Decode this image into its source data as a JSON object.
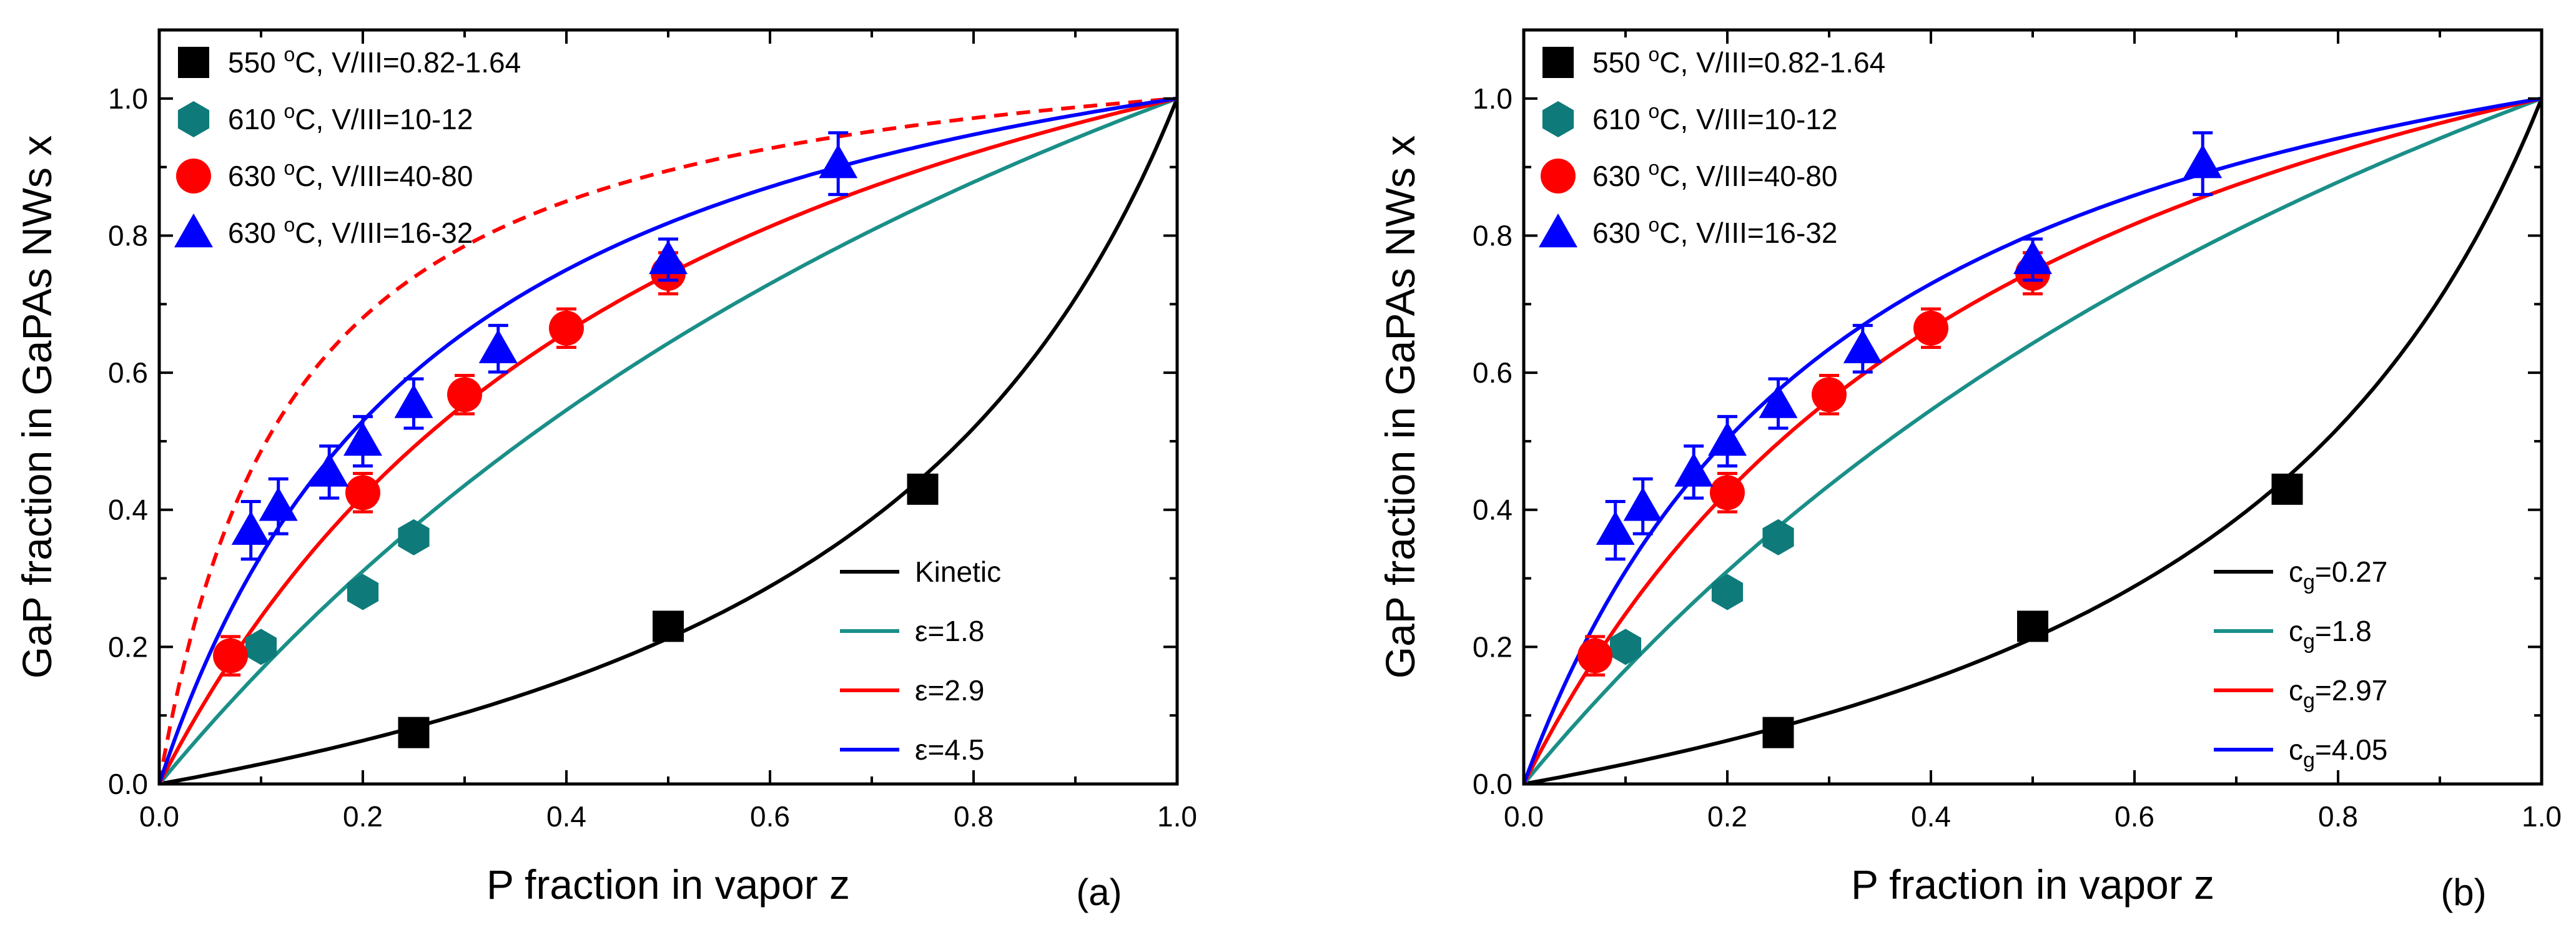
{
  "chart_data": [
    {
      "type": "scatter",
      "panel_label": "(a)",
      "xlabel": "P fraction in vapor z",
      "ylabel": "GaP fraction in GaPAs NWs x",
      "xlim": [
        0,
        1
      ],
      "ylim": [
        0,
        1.1
      ],
      "xticks": [
        "0.0",
        "0.2",
        "0.4",
        "0.6",
        "0.8",
        "1.0"
      ],
      "yticks": [
        "0.0",
        "0.2",
        "0.4",
        "0.6",
        "0.8",
        "1.0"
      ],
      "scatter_series": [
        {
          "name": "550 °C, V/III=0.82-1.64",
          "label_temp": "550",
          "label_rest": "C, V/III=0.82-1.64",
          "marker": "square",
          "color": "#000000",
          "x": [
            0.25,
            0.5,
            0.75
          ],
          "y": [
            0.075,
            0.23,
            0.43
          ]
        },
        {
          "name": "610 °C, V/III=10-12",
          "label_temp": "610",
          "label_rest": "C, V/III=10-12",
          "marker": "hexagon",
          "color": "#0e7a7a",
          "x": [
            0.1,
            0.2,
            0.25
          ],
          "y": [
            0.2,
            0.28,
            0.36
          ]
        },
        {
          "name": "630 °C, V/III=40-80",
          "label_temp": "630",
          "label_rest": "C, V/III=40-80",
          "marker": "circle",
          "color": "#ff0000",
          "x": [
            0.07,
            0.2,
            0.3,
            0.4,
            0.5
          ],
          "y": [
            0.187,
            0.425,
            0.568,
            0.665,
            0.745
          ],
          "err": [
            0.028,
            0.028,
            0.028,
            0.028,
            0.03
          ]
        },
        {
          "name": "630 °C, V/III=16-32",
          "label_temp": "630",
          "label_rest": "C, V/III=16-32",
          "marker": "triangle",
          "color": "#0000ff",
          "x": [
            0.09,
            0.117,
            0.167,
            0.2,
            0.25,
            0.333,
            0.5,
            0.667
          ],
          "y": [
            0.37,
            0.405,
            0.455,
            0.5,
            0.555,
            0.635,
            0.765,
            0.905
          ],
          "err": [
            0.042,
            0.04,
            0.038,
            0.036,
            0.036,
            0.034,
            0.03,
            0.045
          ]
        }
      ],
      "model_curves": [
        {
          "name": "Kinetic",
          "label_main": "Kinetic",
          "label_sym": "",
          "label_sub": "",
          "label_val": "",
          "param": 0.27,
          "color": "#000000",
          "style": "solid"
        },
        {
          "name": "ε=1.8",
          "label_main": "",
          "label_sym": "ε",
          "label_sub": "",
          "label_val": "=1.8",
          "param": 1.8,
          "color": "#1a8f88",
          "style": "solid"
        },
        {
          "name": "ε=2.9",
          "label_main": "",
          "label_sym": "ε",
          "label_sub": "",
          "label_val": "=2.9",
          "param": 2.9,
          "color": "#ff0000",
          "style": "solid"
        },
        {
          "name": "ε=4.5",
          "label_main": "",
          "label_sym": "ε",
          "label_sub": "",
          "label_val": "=4.5",
          "param": 4.5,
          "color": "#0000ff",
          "style": "solid"
        }
      ],
      "extra_curves": [
        {
          "name": "red dashed",
          "param": 8.5,
          "color": "#ff0000",
          "style": "dashed",
          "in_legend": false
        }
      ]
    },
    {
      "type": "scatter",
      "panel_label": "(b)",
      "xlabel": "P fraction in vapor z",
      "ylabel": "GaP fraction in GaPAs NWs x",
      "xlim": [
        0,
        1
      ],
      "ylim": [
        0,
        1.1
      ],
      "xticks": [
        "0.0",
        "0.2",
        "0.4",
        "0.6",
        "0.8",
        "1.0"
      ],
      "yticks": [
        "0.0",
        "0.2",
        "0.4",
        "0.6",
        "0.8",
        "1.0"
      ],
      "scatter_series": [
        {
          "name": "550 °C, V/III=0.82-1.64",
          "label_temp": "550",
          "label_rest": "C, V/III=0.82-1.64",
          "marker": "square",
          "color": "#000000",
          "x": [
            0.25,
            0.5,
            0.75
          ],
          "y": [
            0.075,
            0.23,
            0.43
          ]
        },
        {
          "name": "610 °C, V/III=10-12",
          "label_temp": "610",
          "label_rest": "C, V/III=10-12",
          "marker": "hexagon",
          "color": "#0e7a7a",
          "x": [
            0.1,
            0.2,
            0.25
          ],
          "y": [
            0.2,
            0.28,
            0.36
          ]
        },
        {
          "name": "630 °C, V/III=40-80",
          "label_temp": "630",
          "label_rest": "C, V/III=40-80",
          "marker": "circle",
          "color": "#ff0000",
          "x": [
            0.07,
            0.2,
            0.3,
            0.4,
            0.5
          ],
          "y": [
            0.187,
            0.425,
            0.568,
            0.665,
            0.745
          ],
          "err": [
            0.028,
            0.028,
            0.028,
            0.028,
            0.03
          ]
        },
        {
          "name": "630 °C, V/III=16-32",
          "label_temp": "630",
          "label_rest": "C, V/III=16-32",
          "marker": "triangle",
          "color": "#0000ff",
          "x": [
            0.09,
            0.117,
            0.167,
            0.2,
            0.25,
            0.333,
            0.5,
            0.667
          ],
          "y": [
            0.37,
            0.405,
            0.455,
            0.5,
            0.555,
            0.635,
            0.765,
            0.905
          ],
          "err": [
            0.042,
            0.04,
            0.038,
            0.036,
            0.036,
            0.034,
            0.03,
            0.045
          ]
        }
      ],
      "model_curves": [
        {
          "name": "cg=0.27",
          "label_main": "",
          "label_sym": "c",
          "label_sub": "g",
          "label_val": "=0.27",
          "param": 0.27,
          "color": "#000000",
          "style": "solid"
        },
        {
          "name": "cg=1.8",
          "label_main": "",
          "label_sym": "c",
          "label_sub": "g",
          "label_val": "=1.8",
          "param": 1.8,
          "color": "#1a8f88",
          "style": "solid"
        },
        {
          "name": "cg=2.97",
          "label_main": "",
          "label_sym": "c",
          "label_sub": "g",
          "label_val": "=2.97",
          "param": 2.97,
          "color": "#ff0000",
          "style": "solid"
        },
        {
          "name": "cg=4.05",
          "label_main": "",
          "label_sym": "c",
          "label_sub": "g",
          "label_val": "=4.05",
          "param": 4.05,
          "color": "#0000ff",
          "style": "solid"
        }
      ],
      "extra_curves": []
    }
  ]
}
